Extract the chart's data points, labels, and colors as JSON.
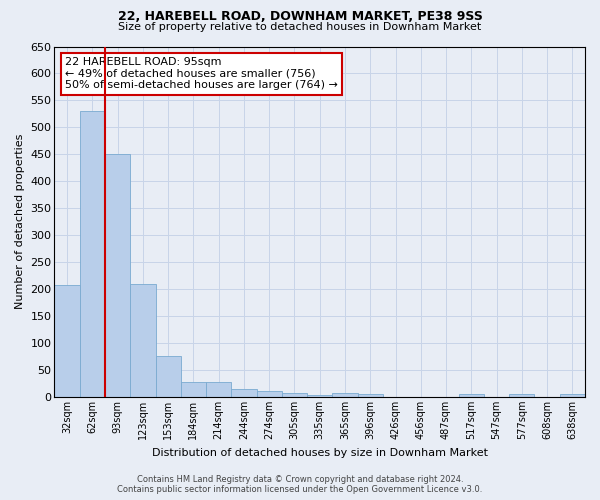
{
  "title": "22, HAREBELL ROAD, DOWNHAM MARKET, PE38 9SS",
  "subtitle": "Size of property relative to detached houses in Downham Market",
  "xlabel": "Distribution of detached houses by size in Downham Market",
  "ylabel": "Number of detached properties",
  "footer1": "Contains HM Land Registry data © Crown copyright and database right 2024.",
  "footer2": "Contains public sector information licensed under the Open Government Licence v3.0.",
  "bar_labels": [
    "32sqm",
    "62sqm",
    "93sqm",
    "123sqm",
    "153sqm",
    "184sqm",
    "214sqm",
    "244sqm",
    "274sqm",
    "305sqm",
    "335sqm",
    "365sqm",
    "396sqm",
    "426sqm",
    "456sqm",
    "487sqm",
    "517sqm",
    "547sqm",
    "577sqm",
    "608sqm",
    "638sqm"
  ],
  "bar_values": [
    207,
    530,
    450,
    210,
    75,
    27,
    27,
    14,
    11,
    8,
    3,
    8,
    5,
    0,
    0,
    0,
    5,
    0,
    5,
    0,
    5
  ],
  "bar_color": "#b8ceea",
  "bar_edge_color": "#7aaad0",
  "grid_color": "#c8d4e8",
  "background_color": "#e8edf5",
  "vline_color": "#cc0000",
  "annotation_title": "22 HAREBELL ROAD: 95sqm",
  "annotation_line1": "← 49% of detached houses are smaller (756)",
  "annotation_line2": "50% of semi-detached houses are larger (764) →",
  "annotation_box_color": "white",
  "annotation_box_edge": "#cc0000",
  "ylim": [
    0,
    650
  ],
  "yticks": [
    0,
    50,
    100,
    150,
    200,
    250,
    300,
    350,
    400,
    450,
    500,
    550,
    600,
    650
  ]
}
